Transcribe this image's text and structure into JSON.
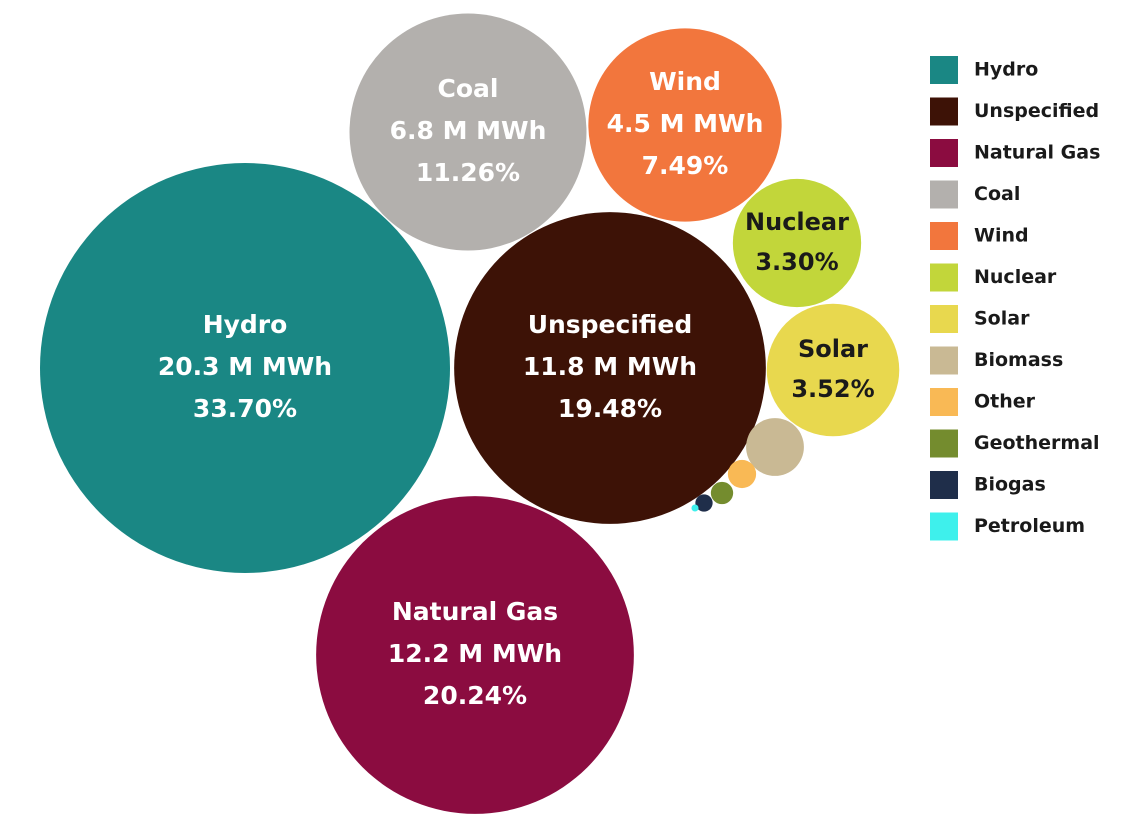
{
  "chart_data": {
    "type": "packed-bubble",
    "categories": [
      "Hydro",
      "Unspecified",
      "Natural Gas",
      "Coal",
      "Wind",
      "Nuclear",
      "Solar",
      "Biomass",
      "Other",
      "Geothermal",
      "Biogas",
      "Petroleum"
    ],
    "values": [
      33.7,
      19.48,
      20.24,
      11.26,
      7.49,
      3.3,
      3.52,
      0.67,
      0.16,
      0.1,
      0.06,
      0.01
    ],
    "value_labels": [
      "33.70%",
      "19.48%",
      "20.24%",
      "11.26%",
      "7.49%",
      "3.30%",
      "3.52%",
      null,
      null,
      null,
      null,
      null
    ],
    "energy": [
      20.3,
      11.8,
      12.2,
      6.8,
      4.5,
      null,
      null,
      null,
      null,
      null,
      null,
      null
    ],
    "energy_labels": [
      "20.3 M MWh",
      "11.8 M MWh",
      "12.2 M MWh",
      "6.8 M MWh",
      "4.5 M MWh",
      null,
      null,
      null,
      null,
      null,
      null,
      null
    ],
    "colors": [
      "#1a8784",
      "#3d1206",
      "#8b0c40",
      "#b3b0ad",
      "#f2763d",
      "#c2d63a",
      "#e8d84e",
      "#c9b994",
      "#f9b955",
      "#748c2e",
      "#1f2e4a",
      "#3ef0ec"
    ],
    "legend": "right"
  }
}
